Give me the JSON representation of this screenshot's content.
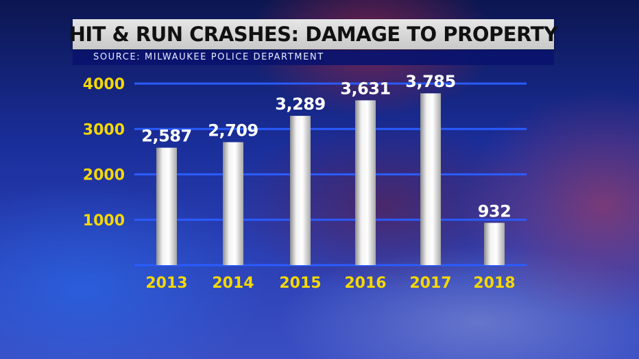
{
  "header": {
    "title": "HIT & RUN CRASHES: DAMAGE TO PROPERTY",
    "source": "SOURCE: MILWAUKEE POLICE DEPARTMENT"
  },
  "chart_data": {
    "type": "bar",
    "title": "HIT & RUN CRASHES: DAMAGE TO PROPERTY",
    "xlabel": "",
    "ylabel": "",
    "categories": [
      "2013",
      "2014",
      "2015",
      "2016",
      "2017",
      "2018"
    ],
    "values": [
      2587,
      2709,
      3289,
      3631,
      3785,
      932
    ],
    "data_labels": [
      "2,587",
      "2,709",
      "3,289",
      "3,631",
      "3,785",
      "932"
    ],
    "yticks": [
      1000,
      2000,
      3000,
      4000
    ],
    "ytick_labels": [
      "1000",
      "2000",
      "3000",
      "4000"
    ],
    "ylim": [
      0,
      4000
    ],
    "grid": true,
    "legend": "none",
    "colors": {
      "bar": "#d8d8d8",
      "gridline": "#2a5cff",
      "tick_text": "#f5d800",
      "label_text": "#ffffff"
    }
  }
}
